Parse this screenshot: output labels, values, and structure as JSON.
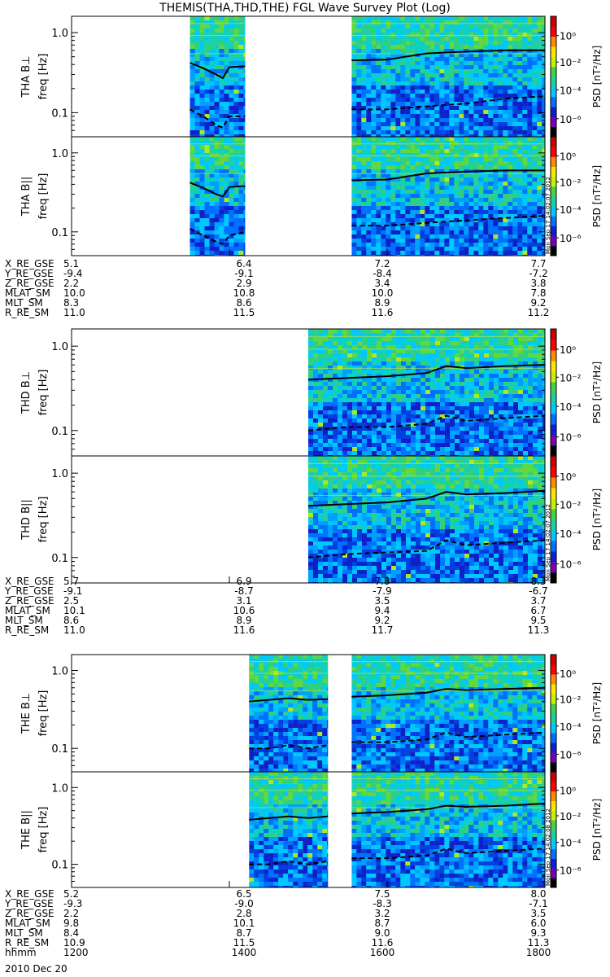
{
  "title": "THEMIS(THA,THD,THE) FGL Wave Survey Plot (Log)",
  "date_label": "2010 Dec 20",
  "colorbar": {
    "label": "PSD [nT²/Hz]",
    "ticks": [
      "10⁰",
      "10⁻²",
      "10⁻⁴",
      "10⁻⁶"
    ],
    "colors": [
      "#000000",
      "#7a00b5",
      "#1020d0",
      "#0070ff",
      "#00c8ff",
      "#1ed0a0",
      "#46d246",
      "#c8f000",
      "#ffe600",
      "#ff8c00",
      "#ff0000",
      "#cc0000"
    ]
  },
  "time_axis": {
    "start": "1200",
    "end": "1800",
    "ticks": [
      "1200",
      "1400",
      "1600",
      "1800"
    ]
  },
  "chart_data": [
    {
      "type": "heatmap",
      "probe": "THA",
      "title": "",
      "ylabel": "THA B⊥",
      "ylabel2": "freq [Hz]",
      "y_ticks": [
        "1.0",
        "0.1"
      ],
      "ylim": [
        0.05,
        1.6
      ],
      "log_y": true,
      "data_windows": [
        [
          "1330",
          "1412"
        ],
        [
          "1533",
          "1800"
        ]
      ],
      "solid_line": {
        "x": [
          "1330",
          "1340",
          "1350",
          "1355",
          "1400",
          "1412",
          "1533",
          "1600",
          "1630",
          "1700",
          "1730",
          "1800"
        ],
        "y": [
          0.42,
          0.36,
          0.3,
          0.27,
          0.37,
          0.38,
          0.45,
          0.46,
          0.55,
          0.58,
          0.6,
          0.6
        ]
      },
      "dashed_line": {
        "x": [
          "1330",
          "1340",
          "1350",
          "1355",
          "1400",
          "1412",
          "1533",
          "1600",
          "1630",
          "1700",
          "1730",
          "1800"
        ],
        "y": [
          0.11,
          0.09,
          0.07,
          0.065,
          0.09,
          0.09,
          0.11,
          0.11,
          0.12,
          0.13,
          0.15,
          0.16
        ]
      }
    },
    {
      "type": "heatmap",
      "probe": "THA",
      "title": "",
      "ylabel": "THA B||",
      "ylabel2": "freq [Hz]",
      "y_ticks": [
        "1.0",
        "0.1"
      ],
      "ylim": [
        0.05,
        1.6
      ],
      "log_y": true,
      "data_windows": [
        [
          "1330",
          "1412"
        ],
        [
          "1533",
          "1800"
        ]
      ],
      "stamp": "Mon Sep 17 14:02:07 2012",
      "solid_line": {
        "x": [
          "1330",
          "1340",
          "1350",
          "1355",
          "1400",
          "1412",
          "1533",
          "1600",
          "1630",
          "1700",
          "1730",
          "1800"
        ],
        "y": [
          0.42,
          0.36,
          0.3,
          0.28,
          0.37,
          0.38,
          0.45,
          0.46,
          0.55,
          0.58,
          0.6,
          0.6
        ]
      },
      "dashed_line": {
        "x": [
          "1330",
          "1340",
          "1350",
          "1355",
          "1400",
          "1412",
          "1533",
          "1600",
          "1630",
          "1700",
          "1730",
          "1800"
        ],
        "y": [
          0.11,
          0.09,
          0.075,
          0.07,
          0.09,
          0.1,
          0.12,
          0.12,
          0.13,
          0.14,
          0.15,
          0.16
        ]
      }
    },
    {
      "type": "heatmap",
      "probe": "THD",
      "title": "",
      "ylabel": "THD B⊥",
      "ylabel2": "freq [Hz]",
      "y_ticks": [
        "1.0",
        "0.1"
      ],
      "ylim": [
        0.05,
        1.6
      ],
      "log_y": true,
      "data_windows": [
        [
          "1500",
          "1800"
        ]
      ],
      "solid_line": {
        "x": [
          "1500",
          "1530",
          "1600",
          "1630",
          "1645",
          "1700",
          "1730",
          "1800"
        ],
        "y": [
          0.4,
          0.42,
          0.44,
          0.48,
          0.58,
          0.55,
          0.58,
          0.6
        ]
      },
      "dashed_line": {
        "x": [
          "1500",
          "1530",
          "1600",
          "1630",
          "1645",
          "1700",
          "1730",
          "1800"
        ],
        "y": [
          0.1,
          0.11,
          0.11,
          0.12,
          0.15,
          0.13,
          0.14,
          0.15
        ]
      }
    },
    {
      "type": "heatmap",
      "probe": "THD",
      "title": "",
      "ylabel": "THD B||",
      "ylabel2": "freq [Hz]",
      "y_ticks": [
        "1.0",
        "0.1"
      ],
      "ylim": [
        0.05,
        1.6
      ],
      "log_y": true,
      "data_windows": [
        [
          "1500",
          "1800"
        ]
      ],
      "stamp": "Mon Sep 17 14:02:07 2012",
      "solid_line": {
        "x": [
          "1500",
          "1530",
          "1600",
          "1630",
          "1645",
          "1700",
          "1730",
          "1800"
        ],
        "y": [
          0.41,
          0.43,
          0.45,
          0.5,
          0.6,
          0.56,
          0.58,
          0.62
        ]
      },
      "dashed_line": {
        "x": [
          "1500",
          "1530",
          "1600",
          "1630",
          "1645",
          "1700",
          "1730",
          "1800"
        ],
        "y": [
          0.1,
          0.11,
          0.115,
          0.12,
          0.16,
          0.14,
          0.15,
          0.16
        ]
      }
    },
    {
      "type": "heatmap",
      "probe": "THE",
      "title": "",
      "ylabel": "THE B⊥",
      "ylabel2": "freq [Hz]",
      "y_ticks": [
        "1.0",
        "0.1"
      ],
      "ylim": [
        0.05,
        1.6
      ],
      "log_y": true,
      "data_windows": [
        [
          "1415",
          "1515"
        ],
        [
          "1533",
          "1800"
        ]
      ],
      "solid_line": {
        "x": [
          "1415",
          "1430",
          "1445",
          "1500",
          "1515",
          "1533",
          "1600",
          "1630",
          "1645",
          "1700",
          "1730",
          "1800"
        ],
        "y": [
          0.4,
          0.42,
          0.44,
          0.42,
          0.43,
          0.46,
          0.48,
          0.52,
          0.58,
          0.56,
          0.58,
          0.6
        ]
      },
      "dashed_line": {
        "x": [
          "1415",
          "1430",
          "1445",
          "1500",
          "1515",
          "1533",
          "1600",
          "1630",
          "1645",
          "1700",
          "1730",
          "1800"
        ],
        "y": [
          0.1,
          0.1,
          0.11,
          0.1,
          0.11,
          0.12,
          0.12,
          0.13,
          0.16,
          0.14,
          0.15,
          0.16
        ]
      }
    },
    {
      "type": "heatmap",
      "probe": "THE",
      "title": "",
      "ylabel": "THE B||",
      "ylabel2": "freq [Hz]",
      "y_ticks": [
        "1.0",
        "0.1"
      ],
      "ylim": [
        0.05,
        1.6
      ],
      "log_y": true,
      "data_windows": [
        [
          "1415",
          "1515"
        ],
        [
          "1533",
          "1800"
        ]
      ],
      "stamp": "Mon Sep 17 14:02:08 2012",
      "solid_line": {
        "x": [
          "1415",
          "1430",
          "1445",
          "1500",
          "1515",
          "1533",
          "1600",
          "1630",
          "1645",
          "1700",
          "1730",
          "1800"
        ],
        "y": [
          0.38,
          0.4,
          0.42,
          0.4,
          0.42,
          0.46,
          0.48,
          0.52,
          0.58,
          0.56,
          0.58,
          0.62
        ]
      },
      "dashed_line": {
        "x": [
          "1415",
          "1430",
          "1445",
          "1500",
          "1515",
          "1533",
          "1600",
          "1630",
          "1645",
          "1700",
          "1730",
          "1800"
        ],
        "y": [
          0.1,
          0.1,
          0.11,
          0.1,
          0.11,
          0.12,
          0.12,
          0.13,
          0.16,
          0.14,
          0.15,
          0.16
        ]
      }
    }
  ],
  "ephemeris": [
    {
      "probe": "THA",
      "rows": [
        {
          "label": "X_RE_GSE",
          "values": [
            "5.1",
            "6.4",
            "7.2",
            "7.7"
          ]
        },
        {
          "label": "Y_RE_GSE",
          "values": [
            "-9.4",
            "-9.1",
            "-8.4",
            "-7.2"
          ]
        },
        {
          "label": "Z_RE_GSE",
          "values": [
            "2.2",
            "2.9",
            "3.4",
            "3.8"
          ]
        },
        {
          "label": "MLAT_SM",
          "values": [
            "10.0",
            "10.8",
            "10.0",
            "7.8"
          ]
        },
        {
          "label": "MLT_SM",
          "values": [
            "8.3",
            "8.6",
            "8.9",
            "9.2"
          ]
        },
        {
          "label": "R_RE_SM",
          "values": [
            "11.0",
            "11.5",
            "11.6",
            "11.2"
          ]
        }
      ]
    },
    {
      "probe": "THD",
      "rows": [
        {
          "label": "X_RE_GSE",
          "values": [
            "5.7",
            "6.9",
            "7.8",
            "8.3"
          ]
        },
        {
          "label": "Y_RE_GSE",
          "values": [
            "-9.1",
            "-8.7",
            "-7.9",
            "-6.7"
          ]
        },
        {
          "label": "Z_RE_GSE",
          "values": [
            "2.5",
            "3.1",
            "3.5",
            "3.7"
          ]
        },
        {
          "label": "MLAT_SM",
          "values": [
            "10.1",
            "10.6",
            "9.4",
            "6.7"
          ]
        },
        {
          "label": "MLT_SM",
          "values": [
            "8.6",
            "8.9",
            "9.2",
            "9.5"
          ]
        },
        {
          "label": "R_RE_SM",
          "values": [
            "11.0",
            "11.6",
            "11.7",
            "11.3"
          ]
        }
      ]
    },
    {
      "probe": "THE",
      "rows": [
        {
          "label": "X_RE_GSE",
          "values": [
            "5.2",
            "6.5",
            "7.5",
            "8.0"
          ]
        },
        {
          "label": "Y_RE_GSE",
          "values": [
            "-9.3",
            "-9.0",
            "-8.3",
            "-7.1"
          ]
        },
        {
          "label": "Z_RE_GSE",
          "values": [
            "2.2",
            "2.8",
            "3.2",
            "3.5"
          ]
        },
        {
          "label": "MLAT_SM",
          "values": [
            "9.8",
            "10.1",
            "8.7",
            "6.0"
          ]
        },
        {
          "label": "MLT_SM",
          "values": [
            "8.4",
            "8.7",
            "9.0",
            "9.3"
          ]
        },
        {
          "label": "R_RE_SM",
          "values": [
            "10.9",
            "11.5",
            "11.6",
            "11.3"
          ]
        },
        {
          "label": "hhmm",
          "values": [
            "1200",
            "1400",
            "1600",
            "1800"
          ]
        }
      ]
    }
  ]
}
